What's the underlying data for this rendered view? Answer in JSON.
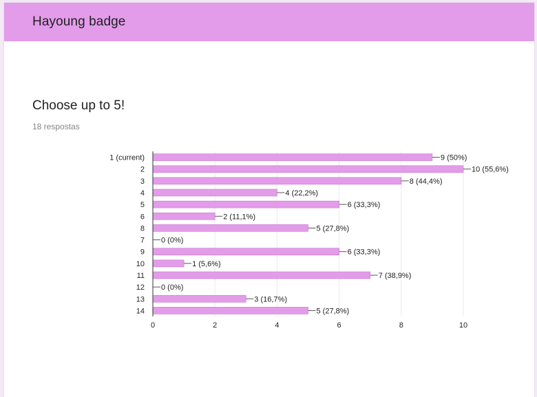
{
  "form": {
    "title": "Hayoung badge",
    "question": "Choose up to 5!",
    "responses": "18 respostas"
  },
  "colors": {
    "header": "#e39ce9",
    "bar": "#e39ce9",
    "bar_stroke": "#c679cc"
  },
  "chart_data": {
    "type": "bar",
    "orientation": "horizontal",
    "categories": [
      "1 (current)",
      "2",
      "3",
      "4",
      "5",
      "6",
      "8",
      "7",
      "9",
      "10",
      "11",
      "12",
      "13",
      "14"
    ],
    "values": [
      9,
      10,
      8,
      4,
      6,
      2,
      5,
      0,
      6,
      1,
      7,
      0,
      3,
      5
    ],
    "data_labels": [
      "9 (50%)",
      "10 (55,6%)",
      "8 (44,4%)",
      "4 (22,2%)",
      "6 (33,3%)",
      "2 (11,1%)",
      "5 (27,8%)",
      "0 (0%)",
      "6 (33,3%)",
      "1 (5,6%)",
      "7 (38,9%)",
      "0 (0%)",
      "3 (16,7%)",
      "5 (27,8%)"
    ],
    "xlim": [
      0,
      10
    ],
    "x_ticks": [
      0,
      2,
      4,
      6,
      8,
      10
    ],
    "grid": true,
    "title": "",
    "xlabel": "",
    "ylabel": ""
  }
}
